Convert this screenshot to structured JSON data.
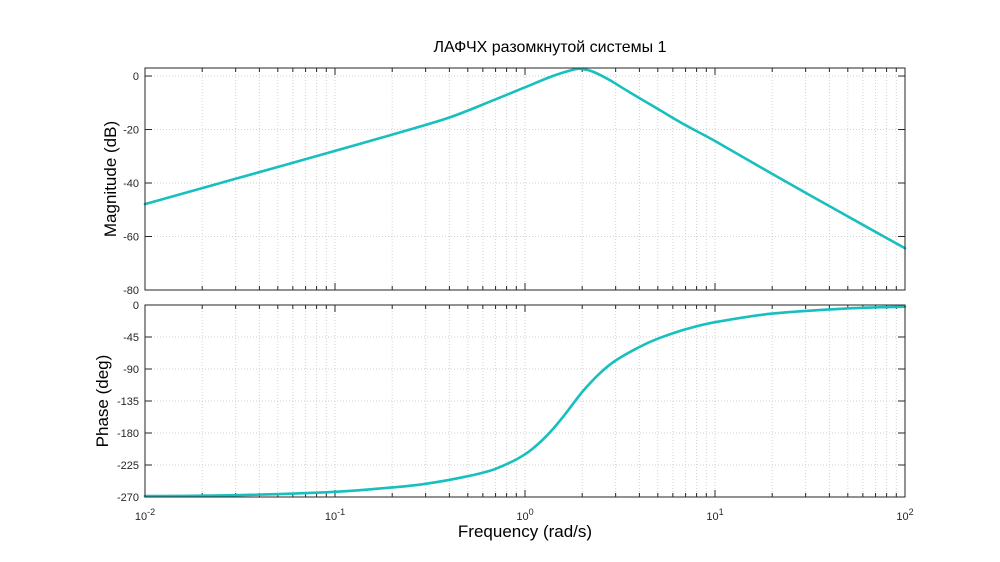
{
  "chart_data": {
    "type": "line",
    "title": "ЛАФЧХ разомкнутой системы 1",
    "xlabel": "Frequency  (rad/s)",
    "xscale": "log",
    "xlim": [
      0.01,
      100
    ],
    "x_tick_labels": [
      {
        "base": "10",
        "exp": "-2"
      },
      {
        "base": "10",
        "exp": "-1"
      },
      {
        "base": "10",
        "exp": "0"
      },
      {
        "base": "10",
        "exp": "1"
      },
      {
        "base": "10",
        "exp": "2"
      }
    ],
    "grid": true,
    "line_color": "#17BFBF",
    "panels": [
      {
        "name": "magnitude",
        "ylabel": "Magnitude (dB)",
        "ylim": [
          -80,
          3
        ],
        "yticks": [
          0,
          -20,
          -40,
          -60,
          -80
        ],
        "ytick_labels": [
          "0",
          "-20",
          "-40",
          "-60",
          "-80"
        ],
        "series": [
          {
            "x": [
              0.01,
              0.02,
              0.05,
              0.1,
              0.2,
              0.4,
              0.7,
              1.0,
              1.4,
              1.8,
              2.0,
              2.3,
              2.8,
              3.5,
              5,
              7,
              10,
              20,
              50,
              100
            ],
            "y": [
              -47.9,
              -41.9,
              -34.0,
              -28.0,
              -21.9,
              -15.5,
              -8.7,
              -4.2,
              0.0,
              2.4,
              2.6,
              1.5,
              -1.6,
              -5.8,
              -12.3,
              -18.4,
              -24.3,
              -36.6,
              -52.5,
              -64.4
            ]
          }
        ]
      },
      {
        "name": "phase",
        "ylabel": "Phase (deg)",
        "ylim": [
          -270,
          0
        ],
        "yticks": [
          0,
          -45,
          -90,
          -135,
          -180,
          -225,
          -270
        ],
        "ytick_labels": [
          "0",
          "-45",
          "-90",
          "-135",
          "-180",
          "-225",
          "-270"
        ],
        "series": [
          {
            "x": [
              0.01,
              0.03,
              0.1,
              0.2,
              0.3,
              0.5,
              0.7,
              1.0,
              1.3,
              1.6,
              2.0,
              2.5,
              3.0,
              4.0,
              5.0,
              7.0,
              10,
              20,
              50,
              100
            ],
            "y": [
              -268.8,
              -267.5,
              -262.7,
              -256.5,
              -251.5,
              -240.8,
              -230.3,
              -210.0,
              -184.0,
              -155.9,
              -122.4,
              -95.0,
              -78.1,
              -59.0,
              -47.4,
              -34.2,
              -24.2,
              -12.1,
              -4.8,
              -2.4
            ]
          }
        ]
      }
    ]
  }
}
